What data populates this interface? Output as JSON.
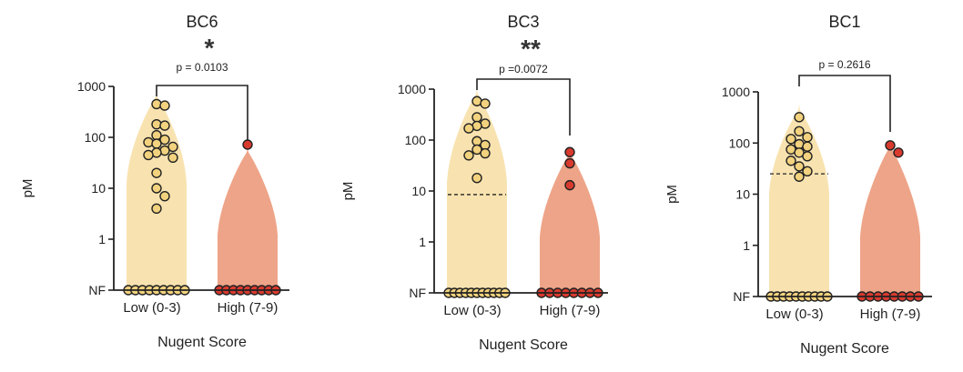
{
  "chart_data": [
    {
      "type": "violin",
      "title": "BC6",
      "significance": "*",
      "p_value_label": "p = 0.0103",
      "xlabel": "Nugent Score",
      "ylabel": "pM",
      "yscale": "log",
      "yticks": [
        "1000",
        "100",
        "10",
        "1",
        "NF"
      ],
      "categories": [
        "Low (0-3)",
        "High (7-9)"
      ],
      "colors": {
        "low": "#f8e3b0",
        "low_point": "#f2d27e",
        "high": "#eea488",
        "high_point": "#d83a2e"
      },
      "series": [
        {
          "name": "Low (0-3)",
          "values": [
            450,
            420,
            180,
            170,
            110,
            90,
            80,
            75,
            65,
            55,
            50,
            45,
            40,
            20,
            10,
            7,
            4
          ],
          "nf_count": 9,
          "median": null
        },
        {
          "name": "High (7-9)",
          "values": [
            72
          ],
          "nf_count": 9,
          "median": null
        }
      ]
    },
    {
      "type": "violin",
      "title": "BC3",
      "significance": "**",
      "p_value_label": "p =0.0072",
      "xlabel": "Nugent Score",
      "ylabel": "pM",
      "yscale": "log",
      "yticks": [
        "1000",
        "100",
        "10",
        "1",
        "NF"
      ],
      "categories": [
        "Low (0-3)",
        "High (7-9)"
      ],
      "colors": {
        "low": "#f8e3b0",
        "low_point": "#f2d27e",
        "high": "#eea488",
        "high_point": "#d83a2e"
      },
      "series": [
        {
          "name": "Low (0-3)",
          "values": [
            580,
            520,
            280,
            210,
            190,
            170,
            95,
            80,
            65,
            55,
            50,
            18
          ],
          "nf_count": 11,
          "median": 8.5
        },
        {
          "name": "High (7-9)",
          "values": [
            58,
            35,
            13
          ],
          "nf_count": 8,
          "median": null
        }
      ]
    },
    {
      "type": "violin",
      "title": "BC1",
      "significance": "",
      "p_value_label": "p = 0.2616",
      "xlabel": "Nugent Score",
      "ylabel": "pM",
      "yscale": "log",
      "yticks": [
        "1000",
        "100",
        "10",
        "1",
        "NF"
      ],
      "categories": [
        "Low (0-3)",
        "High (7-9)"
      ],
      "colors": {
        "low": "#f8e3b0",
        "low_point": "#f2d27e",
        "high": "#eea488",
        "high_point": "#d83a2e"
      },
      "series": [
        {
          "name": "Low (0-3)",
          "values": [
            320,
            170,
            130,
            120,
            95,
            85,
            75,
            65,
            55,
            45,
            35,
            28,
            22
          ],
          "nf_count": 10,
          "median": 25
        },
        {
          "name": "High (7-9)",
          "values": [
            90,
            65
          ],
          "nf_count": 8,
          "median": null
        }
      ]
    }
  ]
}
